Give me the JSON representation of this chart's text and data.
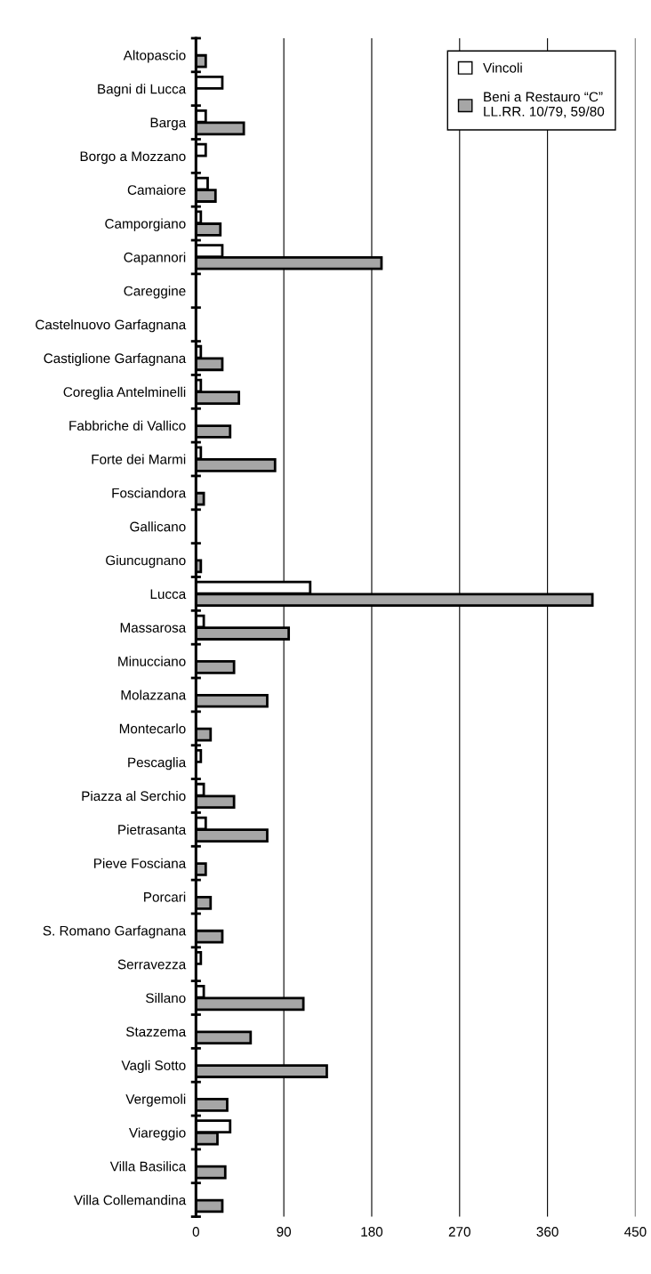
{
  "chart_data": {
    "type": "bar",
    "orientation": "horizontal",
    "categories": [
      "Altopascio",
      "Bagni di Lucca",
      "Barga",
      "Borgo a Mozzano",
      "Camaiore",
      "Camporgiano",
      "Capannori",
      "Careggine",
      "Castelnuovo Garfagnana",
      "Castiglione Garfagnana",
      "Coreglia Antelminelli",
      "Fabbriche di Vallico",
      "Forte dei Marmi",
      "Fosciandora",
      "Gallicano",
      "Giuncugnano",
      "Lucca",
      "Massarosa",
      "Minucciano",
      "Molazzana",
      "Montecarlo",
      "Pescaglia",
      "Piazza al Serchio",
      "Pietrasanta",
      "Pieve Fosciana",
      "Porcari",
      "S. Romano Garfagnana",
      "Serravezza",
      "Sillano",
      "Stazzema",
      "Vagli Sotto",
      "Vergemoli",
      "Viareggio",
      "Villa Basilica",
      "Villa Collemandina"
    ],
    "series": [
      {
        "name": "Vincoli",
        "color": "#ffffff",
        "values": [
          0,
          27,
          10,
          10,
          12,
          5,
          27,
          0,
          0,
          5,
          5,
          0,
          5,
          0,
          0,
          0,
          117,
          8,
          0,
          0,
          0,
          5,
          8,
          10,
          0,
          0,
          0,
          5,
          8,
          0,
          0,
          0,
          35,
          0,
          0
        ]
      },
      {
        "name": "Beni a Restauro “C”\nLL.RR. 10/79, 59/80",
        "color": "#a6a6a6",
        "values": [
          10,
          0,
          49,
          0,
          20,
          25,
          190,
          0,
          0,
          27,
          44,
          35,
          81,
          8,
          0,
          5,
          406,
          95,
          39,
          73,
          15,
          0,
          39,
          73,
          10,
          15,
          27,
          0,
          110,
          56,
          134,
          32,
          22,
          30,
          27
        ]
      }
    ],
    "xlim": [
      0,
      450
    ],
    "xticks": [
      0,
      90,
      180,
      270,
      360,
      450
    ],
    "grid": "x",
    "legend": "top right"
  }
}
